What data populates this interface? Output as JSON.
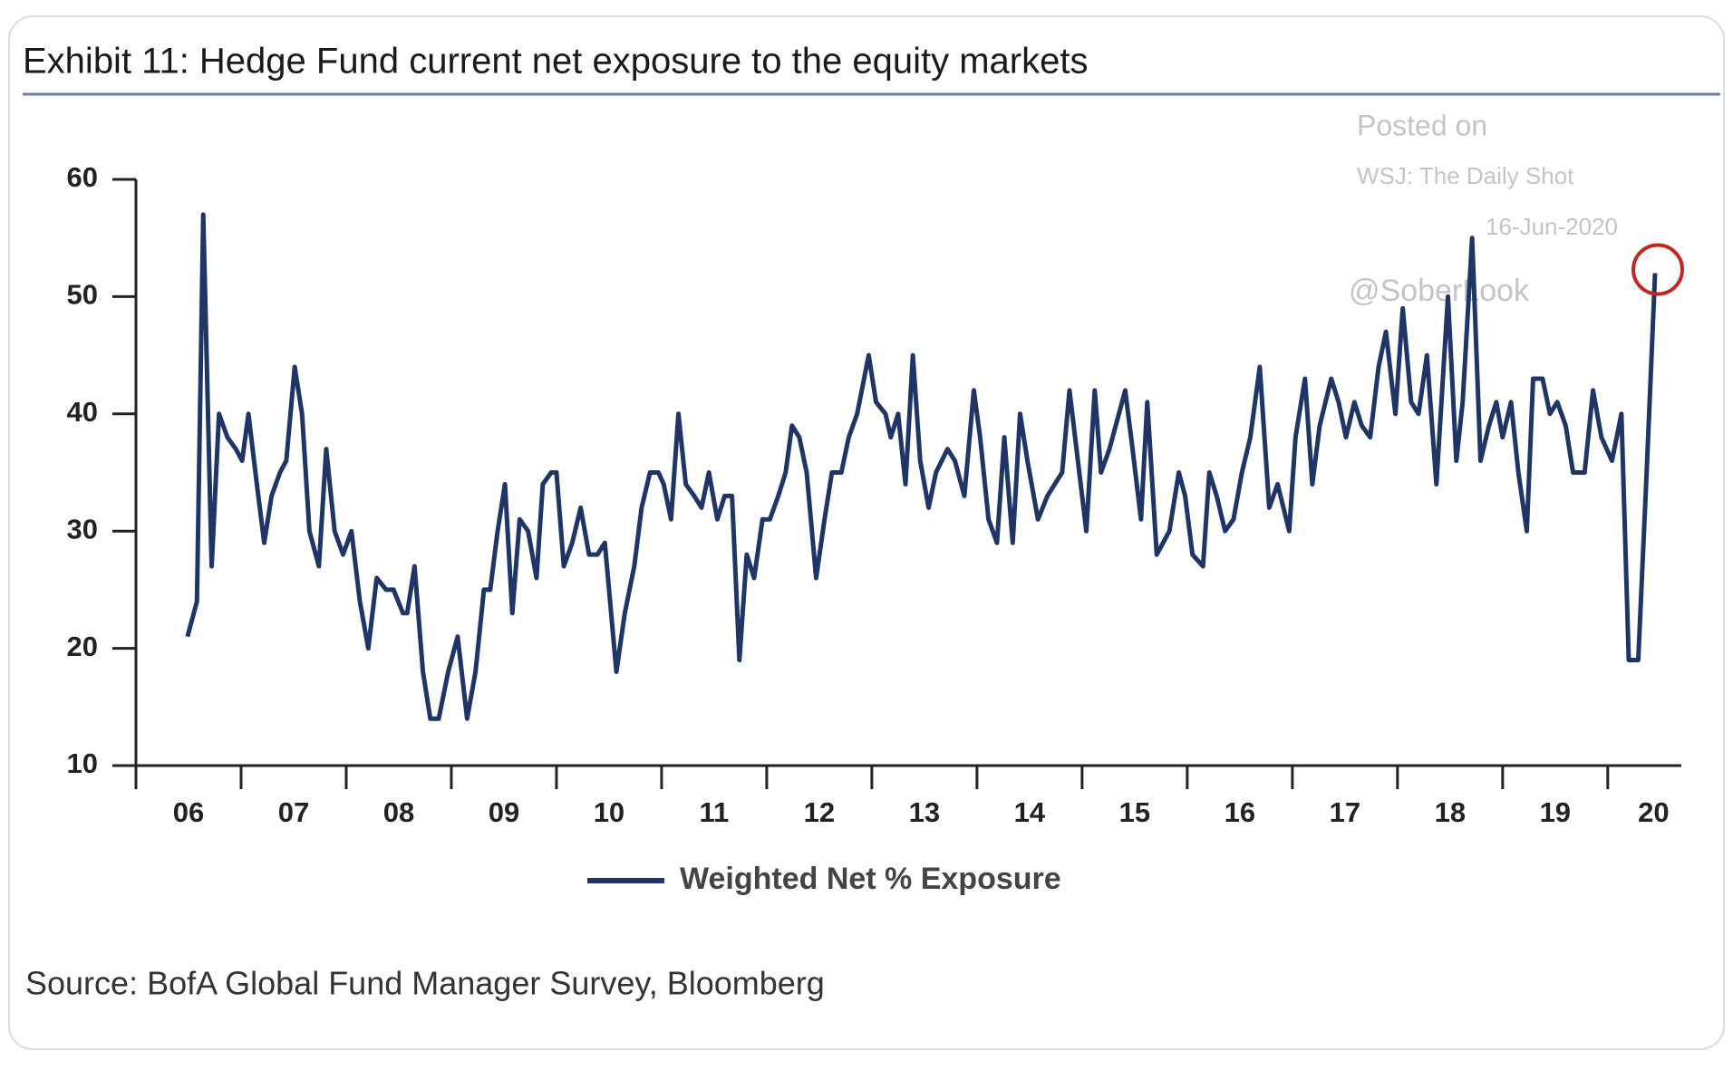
{
  "chart_data": {
    "type": "line",
    "title": "Exhibit 11: Hedge Fund current net exposure to the equity markets",
    "watermark": [
      "Posted on",
      "WSJ: The Daily Shot",
      "16-Jun-2020",
      "@SoberLook"
    ],
    "source": "Source: BofA Global Fund Manager Survey, Bloomberg",
    "x": [
      6.49,
      6.58,
      6.64,
      6.72,
      6.79,
      6.87,
      6.95,
      7.01,
      7.07,
      7.15,
      7.22,
      7.29,
      7.37,
      7.43,
      7.51,
      7.58,
      7.65,
      7.74,
      7.81,
      7.89,
      7.97,
      8.05,
      8.13,
      8.21,
      8.29,
      8.38,
      8.45,
      8.54,
      8.58,
      8.65,
      8.73,
      8.8,
      8.88,
      8.97,
      9.06,
      9.15,
      9.23,
      9.31,
      9.37,
      9.44,
      9.51,
      9.58,
      9.65,
      9.73,
      9.81,
      9.87,
      9.95,
      10.0,
      10.07,
      10.15,
      10.23,
      10.31,
      10.39,
      10.46,
      10.57,
      10.65,
      10.74,
      10.81,
      10.89,
      10.97,
      11.02,
      11.09,
      11.16,
      11.23,
      11.31,
      11.38,
      11.45,
      11.53,
      11.6,
      11.67,
      11.74,
      11.81,
      11.88,
      11.96,
      12.03,
      12.11,
      12.18,
      12.24,
      12.31,
      12.38,
      12.47,
      12.55,
      12.62,
      12.71,
      12.78,
      12.86,
      12.97,
      13.04,
      13.13,
      13.18,
      13.25,
      13.32,
      13.39,
      13.46,
      13.54,
      13.61,
      13.72,
      13.79,
      13.88,
      13.97,
      14.03,
      14.11,
      14.19,
      14.26,
      14.34,
      14.41,
      14.48,
      14.58,
      14.67,
      14.74,
      14.81,
      14.88,
      14.96,
      15.04,
      15.12,
      15.18,
      15.26,
      15.35,
      15.41,
      15.48,
      15.56,
      15.62,
      15.71,
      15.77,
      15.83,
      15.92,
      15.98,
      16.05,
      16.15,
      16.21,
      16.28,
      16.36,
      16.44,
      16.52,
      16.6,
      16.69,
      16.78,
      16.86,
      16.97,
      17.03,
      17.12,
      17.19,
      17.26,
      17.37,
      17.44,
      17.51,
      17.59,
      17.66,
      17.74,
      17.82,
      17.89,
      17.98,
      18.05,
      18.13,
      18.2,
      18.28,
      18.37,
      18.48,
      18.56,
      18.62,
      18.71,
      18.79,
      18.87,
      18.94,
      19.0,
      19.08,
      19.15,
      19.23,
      19.29,
      19.38,
      19.45,
      19.52,
      19.6,
      19.67,
      19.78,
      19.86,
      19.94,
      20.04,
      20.13,
      20.2,
      20.29,
      20.37,
      20.45
    ],
    "series": [
      {
        "name": "Weighted Net % Exposure",
        "color": "#1f3566",
        "values": [
          21,
          24,
          57,
          27,
          40,
          38,
          37,
          36,
          40,
          34,
          29,
          33,
          35,
          36,
          44,
          40,
          30,
          27,
          37,
          30,
          28,
          30,
          24,
          20,
          26,
          25,
          25,
          23,
          23,
          27,
          18,
          14,
          14,
          18,
          21,
          14,
          18,
          25,
          25,
          30,
          34,
          23,
          31,
          30,
          26,
          34,
          35,
          35,
          27,
          29,
          32,
          28,
          28,
          29,
          18,
          23,
          27,
          32,
          35,
          35,
          34,
          31,
          40,
          34,
          33,
          32,
          35,
          31,
          33,
          33,
          19,
          28,
          26,
          31,
          31,
          33,
          35,
          39,
          38,
          35,
          26,
          31,
          35,
          35,
          38,
          40,
          45,
          41,
          40,
          38,
          40,
          34,
          45,
          36,
          32,
          35,
          37,
          36,
          33,
          42,
          38,
          31,
          29,
          38,
          29,
          40,
          36,
          31,
          33,
          34,
          35,
          42,
          36,
          30,
          42,
          35,
          37,
          40,
          42,
          37,
          31,
          41,
          28,
          29,
          30,
          35,
          33,
          28,
          27,
          35,
          33,
          30,
          31,
          35,
          38,
          44,
          32,
          34,
          30,
          38,
          43,
          34,
          39,
          43,
          41,
          38,
          41,
          39,
          38,
          44,
          47,
          40,
          49,
          41,
          40,
          45,
          34,
          50,
          36,
          41,
          55,
          36,
          39,
          41,
          38,
          41,
          35,
          30,
          43,
          43,
          40,
          41,
          39,
          35,
          35,
          42,
          38,
          36,
          40,
          19,
          19,
          35,
          52
        ]
      }
    ],
    "xlim": [
      6,
      20.7
    ],
    "xticks": [
      {
        "value": 6,
        "label": "06"
      },
      {
        "value": 7,
        "label": "07"
      },
      {
        "value": 8,
        "label": "08"
      },
      {
        "value": 9,
        "label": "09"
      },
      10,
      11,
      12,
      13,
      14,
      15,
      16,
      17,
      18,
      19,
      20
    ],
    "ylim": [
      10,
      60
    ],
    "yticks": [
      10,
      20,
      30,
      40,
      50,
      60
    ],
    "grid": false
  }
}
